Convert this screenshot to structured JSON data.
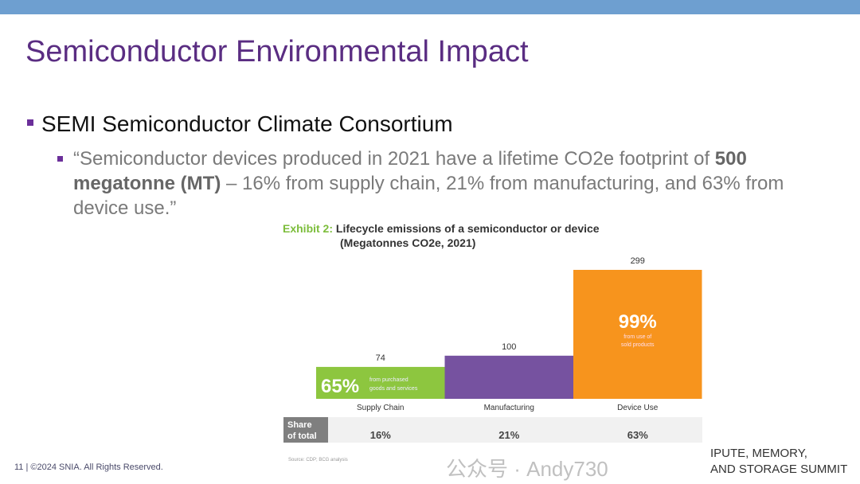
{
  "slide": {
    "title": "Semiconductor Environmental Impact",
    "bullet1": "SEMI Semiconductor Climate Consortium",
    "bullet2_pre": "“Semiconductor devices produced in 2021 have a lifetime CO2e footprint of ",
    "bullet2_bold": "500 megatonne (MT)",
    "bullet2_post": " – 16% from supply chain, 21% from manufacturing, and 63% from device use.”",
    "footer": "11 | ©2024 SNIA. All Rights Reserved.",
    "summit_line1": "IPUTE, MEMORY,",
    "summit_line2": "AND STORAGE SUMMIT",
    "watermark": "公众号 · Andy730"
  },
  "chart_data": {
    "type": "bar",
    "title_label": "Exhibit 2:",
    "title": "Lifecycle emissions of a semiconductor or device",
    "subtitle": "(Megatonnes CO2e, 2021)",
    "categories": [
      "Supply Chain",
      "Manufacturing",
      "Device Use"
    ],
    "values": [
      74,
      100,
      299
    ],
    "colors": [
      "#8dc63f",
      "#7652a0",
      "#f7941d"
    ],
    "inner_pct": [
      "65%",
      "",
      "99%"
    ],
    "inner_note": [
      "from purchased goods and services",
      "",
      "from use of sold products"
    ],
    "share_label": "Share of total",
    "shares": [
      "16%",
      "21%",
      "63%"
    ],
    "source": "Source: CDP; BCG analysis",
    "ylim": [
      0,
      299
    ]
  }
}
